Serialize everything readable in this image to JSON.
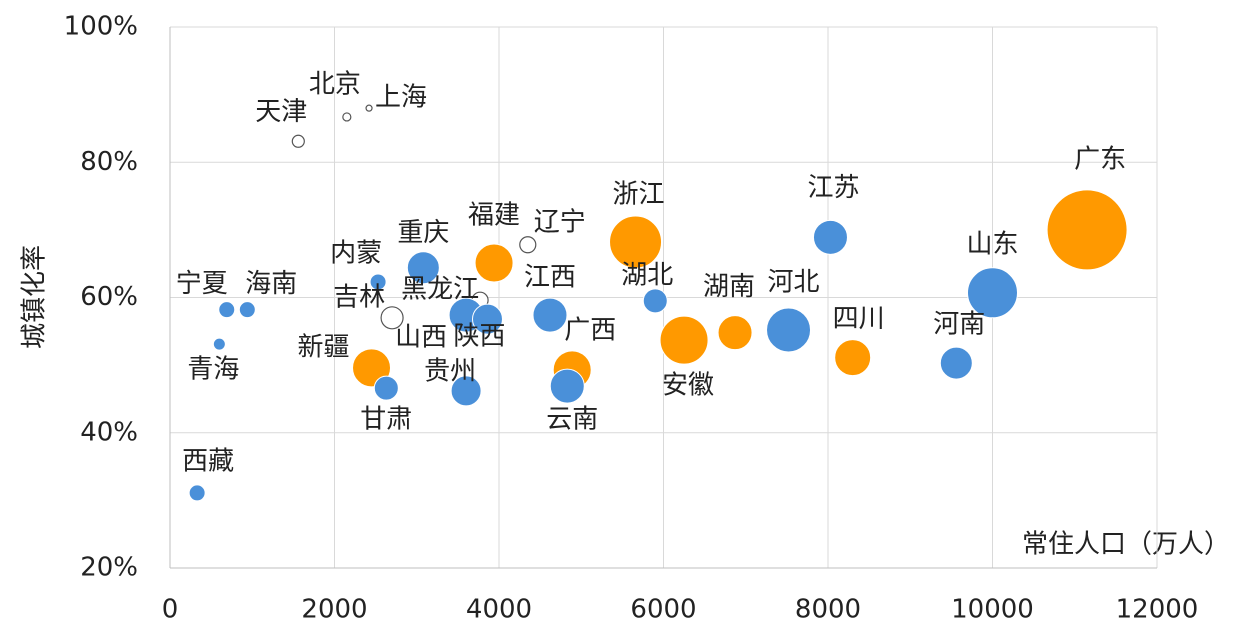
{
  "chart_data": {
    "type": "bubble",
    "x_label": "常住人口（万人）",
    "y_label": "城镇化率",
    "labels": [
      "西藏",
      "青海",
      "宁夏",
      "海南",
      "天津",
      "北京",
      "上海",
      "内蒙",
      "吉林",
      "新疆",
      "甘肃",
      "重庆",
      "黑龙江",
      "山西",
      "陕西",
      "贵州",
      "福建",
      "辽宁",
      "江西",
      "广西",
      "云南",
      "浙江",
      "湖北",
      "安徽",
      "湖南",
      "河北",
      "江苏",
      "四川",
      "河南",
      "山东",
      "广东"
    ],
    "x": [
      330,
      600,
      690,
      940,
      1560,
      2150,
      2420,
      2530,
      2700,
      2450,
      2630,
      3080,
      3770,
      3600,
      3860,
      3600,
      3940,
      4350,
      4620,
      4890,
      4830,
      5660,
      5900,
      6250,
      6870,
      7520,
      8030,
      8300,
      9560,
      10000,
      11150
    ],
    "values": [
      31.1,
      53.1,
      58.2,
      58.2,
      83.1,
      86.7,
      88.0,
      62.3,
      57.0,
      49.6,
      46.6,
      64.4,
      59.6,
      57.4,
      56.8,
      46.2,
      65.1,
      67.8,
      57.4,
      49.3,
      46.9,
      68.2,
      59.5,
      53.7,
      54.8,
      55.2,
      68.9,
      51.1,
      50.3,
      60.7,
      70.0
    ],
    "sizes": [
      8,
      6,
      8,
      8,
      6,
      4,
      3,
      8,
      11,
      19,
      12,
      16,
      8,
      17,
      15,
      15,
      19,
      8,
      17,
      19,
      17,
      26,
      12,
      24,
      17,
      22,
      17,
      18,
      16,
      25,
      40
    ],
    "point_colors": [
      "#4a90d9",
      "#4a90d9",
      "#4a90d9",
      "#4a90d9",
      "#ffffff",
      "#ffffff",
      "#ffffff",
      "#4a90d9",
      "#ffffff",
      "#ff9900",
      "#4a90d9",
      "#4a90d9",
      "#ffffff",
      "#4a90d9",
      "#4a90d9",
      "#4a90d9",
      "#ff9900",
      "#ffffff",
      "#4a90d9",
      "#ff9900",
      "#4a90d9",
      "#ff9900",
      "#4a90d9",
      "#ff9900",
      "#ff9900",
      "#4a90d9",
      "#4a90d9",
      "#ff9900",
      "#4a90d9",
      "#4a90d9",
      "#ff9900"
    ],
    "xlim": [
      0,
      12000
    ],
    "xticks": [
      0,
      2000,
      4000,
      6000,
      8000,
      10000,
      12000
    ],
    "ylim": [
      20,
      100
    ],
    "yticks": [
      {
        "value": 20,
        "label": "20%"
      },
      {
        "value": 40,
        "label": "40%"
      },
      {
        "value": 60,
        "label": "60%"
      },
      {
        "value": 80,
        "label": "80%"
      },
      {
        "value": 100,
        "label": "100%"
      }
    ],
    "grid": true
  }
}
